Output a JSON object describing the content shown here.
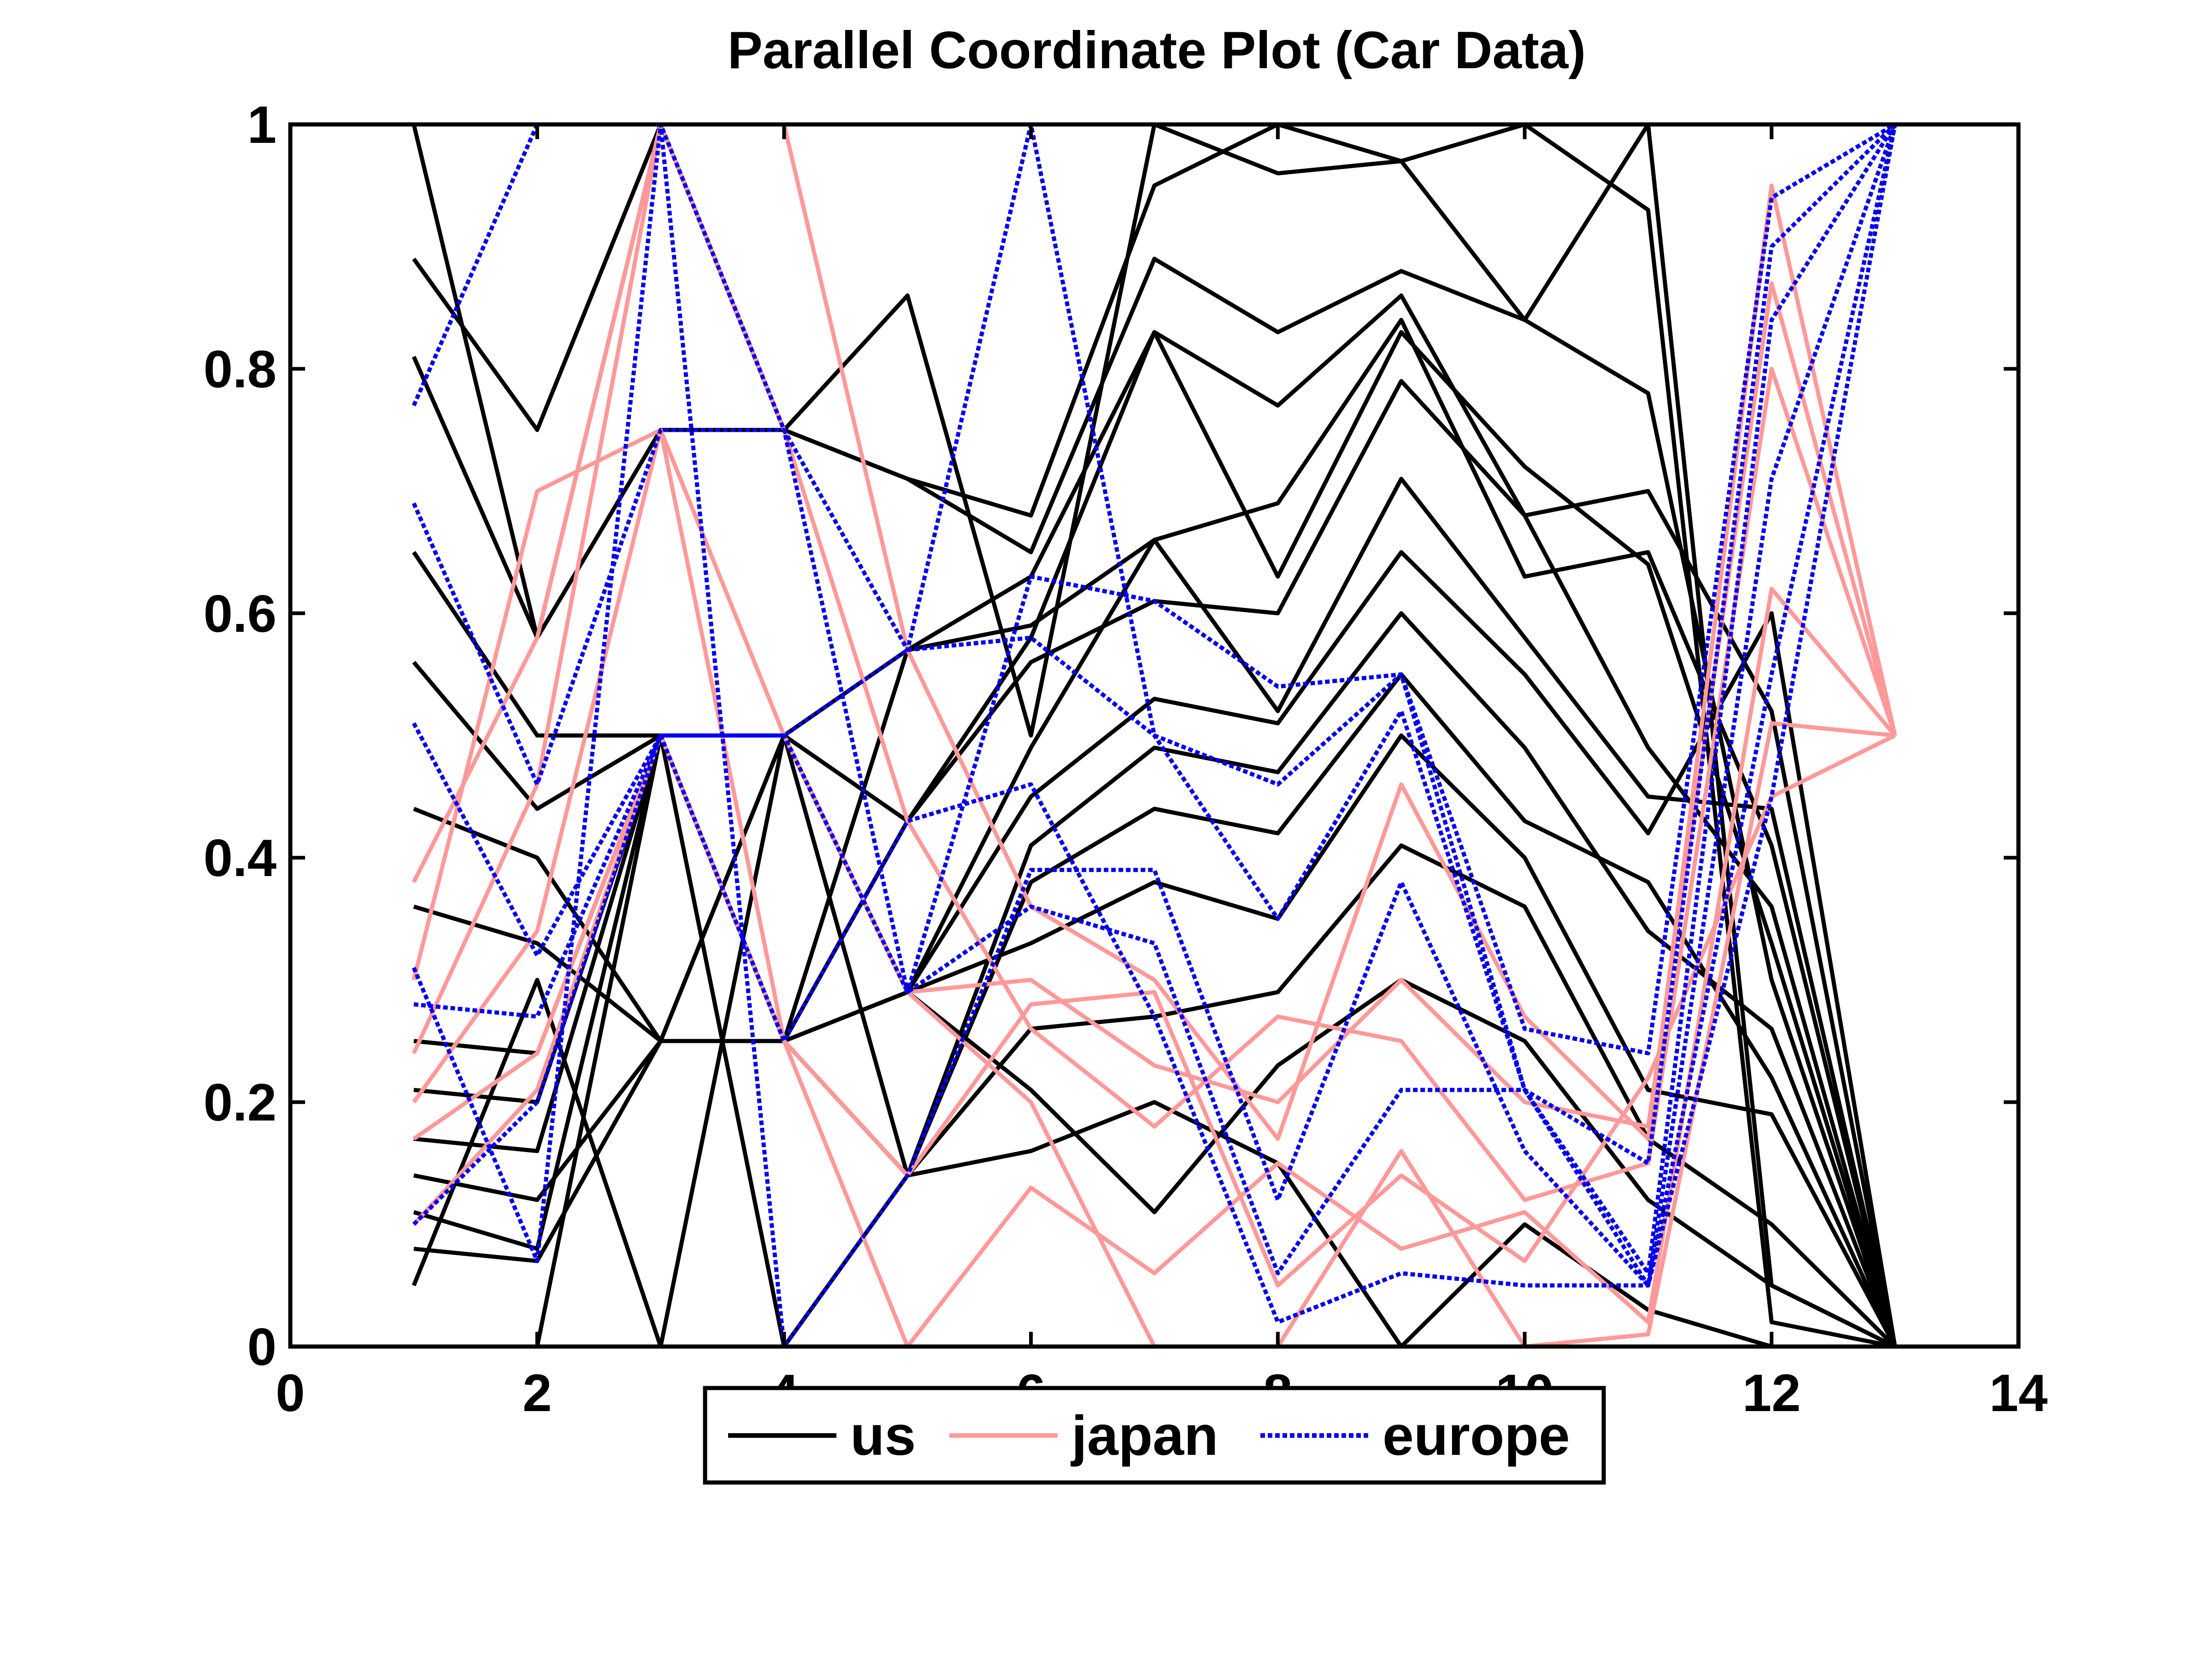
{
  "chart_data": {
    "type": "line",
    "title": "Parallel Coordinate Plot (Car Data)",
    "xlabel": "",
    "ylabel": "",
    "xlim": [
      0,
      14
    ],
    "ylim": [
      0,
      1
    ],
    "x_ticks": [
      0,
      2,
      4,
      6,
      8,
      10,
      12,
      14
    ],
    "x_tick_labels": [
      "0",
      "2",
      "4",
      "6",
      "8",
      "10",
      "12",
      "14"
    ],
    "y_ticks": [
      0,
      0.2,
      0.4,
      0.6,
      0.8,
      1
    ],
    "y_tick_labels": [
      "0",
      "0.2",
      "0.4",
      "0.6",
      "0.8",
      "1"
    ],
    "grid": false,
    "legend_position": "bottom-center",
    "x": [
      1,
      2,
      3,
      4,
      5,
      6,
      7,
      8,
      9,
      10,
      11,
      12,
      13
    ],
    "series": [
      {
        "name": "us",
        "color": "#000000",
        "style": "solid",
        "lines": [
          [
            1.0,
            0.58,
            1.0,
            0.75,
            0.71,
            0.68,
            0.95,
            1.0,
            0.97,
            1.0,
            0.93,
            0.02,
            0.0
          ],
          [
            0.89,
            0.75,
            1.0,
            0.75,
            0.86,
            0.5,
            1.0,
            0.96,
            0.97,
            0.84,
            1.0,
            0.05,
            0.0
          ],
          [
            0.81,
            0.58,
            0.75,
            0.75,
            0.71,
            0.65,
            0.89,
            0.83,
            0.88,
            0.84,
            0.78,
            0.3,
            0.0
          ],
          [
            0.65,
            0.5,
            0.5,
            0.25,
            0.57,
            0.63,
            0.83,
            0.77,
            0.86,
            0.68,
            0.7,
            0.52,
            0.0
          ],
          [
            0.56,
            0.44,
            0.5,
            0.5,
            0.57,
            0.59,
            0.66,
            0.69,
            0.84,
            0.63,
            0.65,
            0.41,
            0.0
          ],
          [
            0.44,
            0.4,
            0.25,
            0.25,
            0.43,
            0.58,
            0.83,
            0.63,
            0.83,
            0.72,
            0.64,
            0.33,
            0.0
          ],
          [
            0.36,
            0.33,
            0.25,
            0.5,
            0.43,
            0.56,
            0.61,
            0.6,
            0.79,
            0.68,
            0.49,
            0.36,
            0.0
          ],
          [
            0.25,
            0.24,
            0.5,
            0.5,
            0.29,
            0.49,
            0.66,
            0.52,
            0.71,
            0.58,
            0.45,
            0.44,
            0.0
          ],
          [
            0.21,
            0.2,
            0.5,
            0.25,
            0.29,
            0.45,
            0.53,
            0.51,
            0.65,
            0.55,
            0.42,
            0.6,
            0.0
          ],
          [
            0.17,
            0.16,
            0.5,
            0.25,
            0.14,
            0.41,
            0.49,
            0.47,
            0.6,
            0.49,
            0.34,
            0.26,
            0.0
          ],
          [
            0.14,
            0.12,
            0.25,
            0.5,
            0.14,
            0.38,
            0.44,
            0.42,
            0.55,
            0.43,
            0.38,
            0.22,
            0.0
          ],
          [
            0.11,
            0.08,
            0.5,
            0.25,
            0.29,
            0.33,
            0.38,
            0.35,
            0.5,
            0.4,
            0.21,
            0.19,
            0.0
          ],
          [
            0.08,
            0.07,
            0.25,
            0.25,
            0.14,
            0.26,
            0.27,
            0.29,
            0.41,
            0.36,
            0.17,
            0.1,
            0.0
          ],
          [
            0.05,
            0.3,
            0.0,
            0.5,
            0.29,
            0.21,
            0.11,
            0.23,
            0.3,
            0.25,
            0.12,
            0.05,
            0.0
          ],
          [
            0.0,
            0.0,
            0.5,
            0.0,
            0.14,
            0.16,
            0.2,
            0.15,
            0.0,
            0.1,
            0.03,
            0.0,
            0.0
          ]
        ]
      },
      {
        "name": "japan",
        "color": "#ff9999",
        "style": "solid",
        "lines": [
          [
            0.38,
            0.58,
            1.0,
            1.0,
            0.57,
            0.36,
            0.3,
            0.17,
            0.46,
            0.27,
            0.17,
            0.95,
            0.5
          ],
          [
            0.3,
            0.7,
            0.75,
            0.5,
            0.29,
            0.3,
            0.23,
            0.2,
            0.3,
            0.2,
            0.18,
            0.87,
            0.5
          ],
          [
            0.24,
            0.46,
            1.0,
            0.75,
            0.43,
            0.26,
            0.18,
            0.27,
            0.25,
            0.12,
            0.15,
            0.8,
            0.5
          ],
          [
            0.2,
            0.34,
            0.75,
            0.25,
            0.0,
            0.13,
            0.06,
            0.15,
            0.08,
            0.11,
            0.02,
            0.62,
            0.5
          ],
          [
            0.17,
            0.24,
            0.5,
            0.5,
            0.29,
            0.2,
            0.0,
            0.0,
            0.16,
            0.0,
            0.01,
            0.51,
            0.5
          ],
          [
            0.1,
            0.21,
            0.5,
            0.25,
            0.14,
            0.28,
            0.29,
            0.05,
            0.14,
            0.07,
            0.22,
            0.45,
            0.5
          ]
        ]
      },
      {
        "name": "europe",
        "color": "#0000ee",
        "style": "dotted",
        "lines": [
          [
            0.77,
            1.0,
            1.0,
            0.75,
            0.57,
            1.0,
            0.5,
            0.46,
            0.55,
            0.26,
            0.24,
            0.94,
            1.0
          ],
          [
            0.69,
            0.46,
            0.75,
            0.75,
            0.29,
            0.63,
            0.61,
            0.54,
            0.55,
            0.21,
            0.15,
            0.9,
            1.0
          ],
          [
            0.51,
            0.32,
            0.5,
            0.5,
            0.57,
            0.58,
            0.5,
            0.35,
            0.52,
            0.21,
            0.06,
            0.84,
            1.0
          ],
          [
            0.31,
            0.07,
            1.0,
            0.0,
            0.14,
            0.39,
            0.39,
            0.12,
            0.38,
            0.16,
            0.05,
            0.71,
            1.0
          ],
          [
            0.28,
            0.27,
            0.5,
            0.5,
            0.29,
            0.36,
            0.33,
            0.06,
            0.21,
            0.21,
            0.05,
            0.55,
            1.0
          ],
          [
            0.1,
            0.2,
            0.5,
            0.25,
            0.43,
            0.46,
            0.27,
            0.02,
            0.06,
            0.05,
            0.05,
            0.45,
            1.0
          ]
        ]
      }
    ]
  }
}
